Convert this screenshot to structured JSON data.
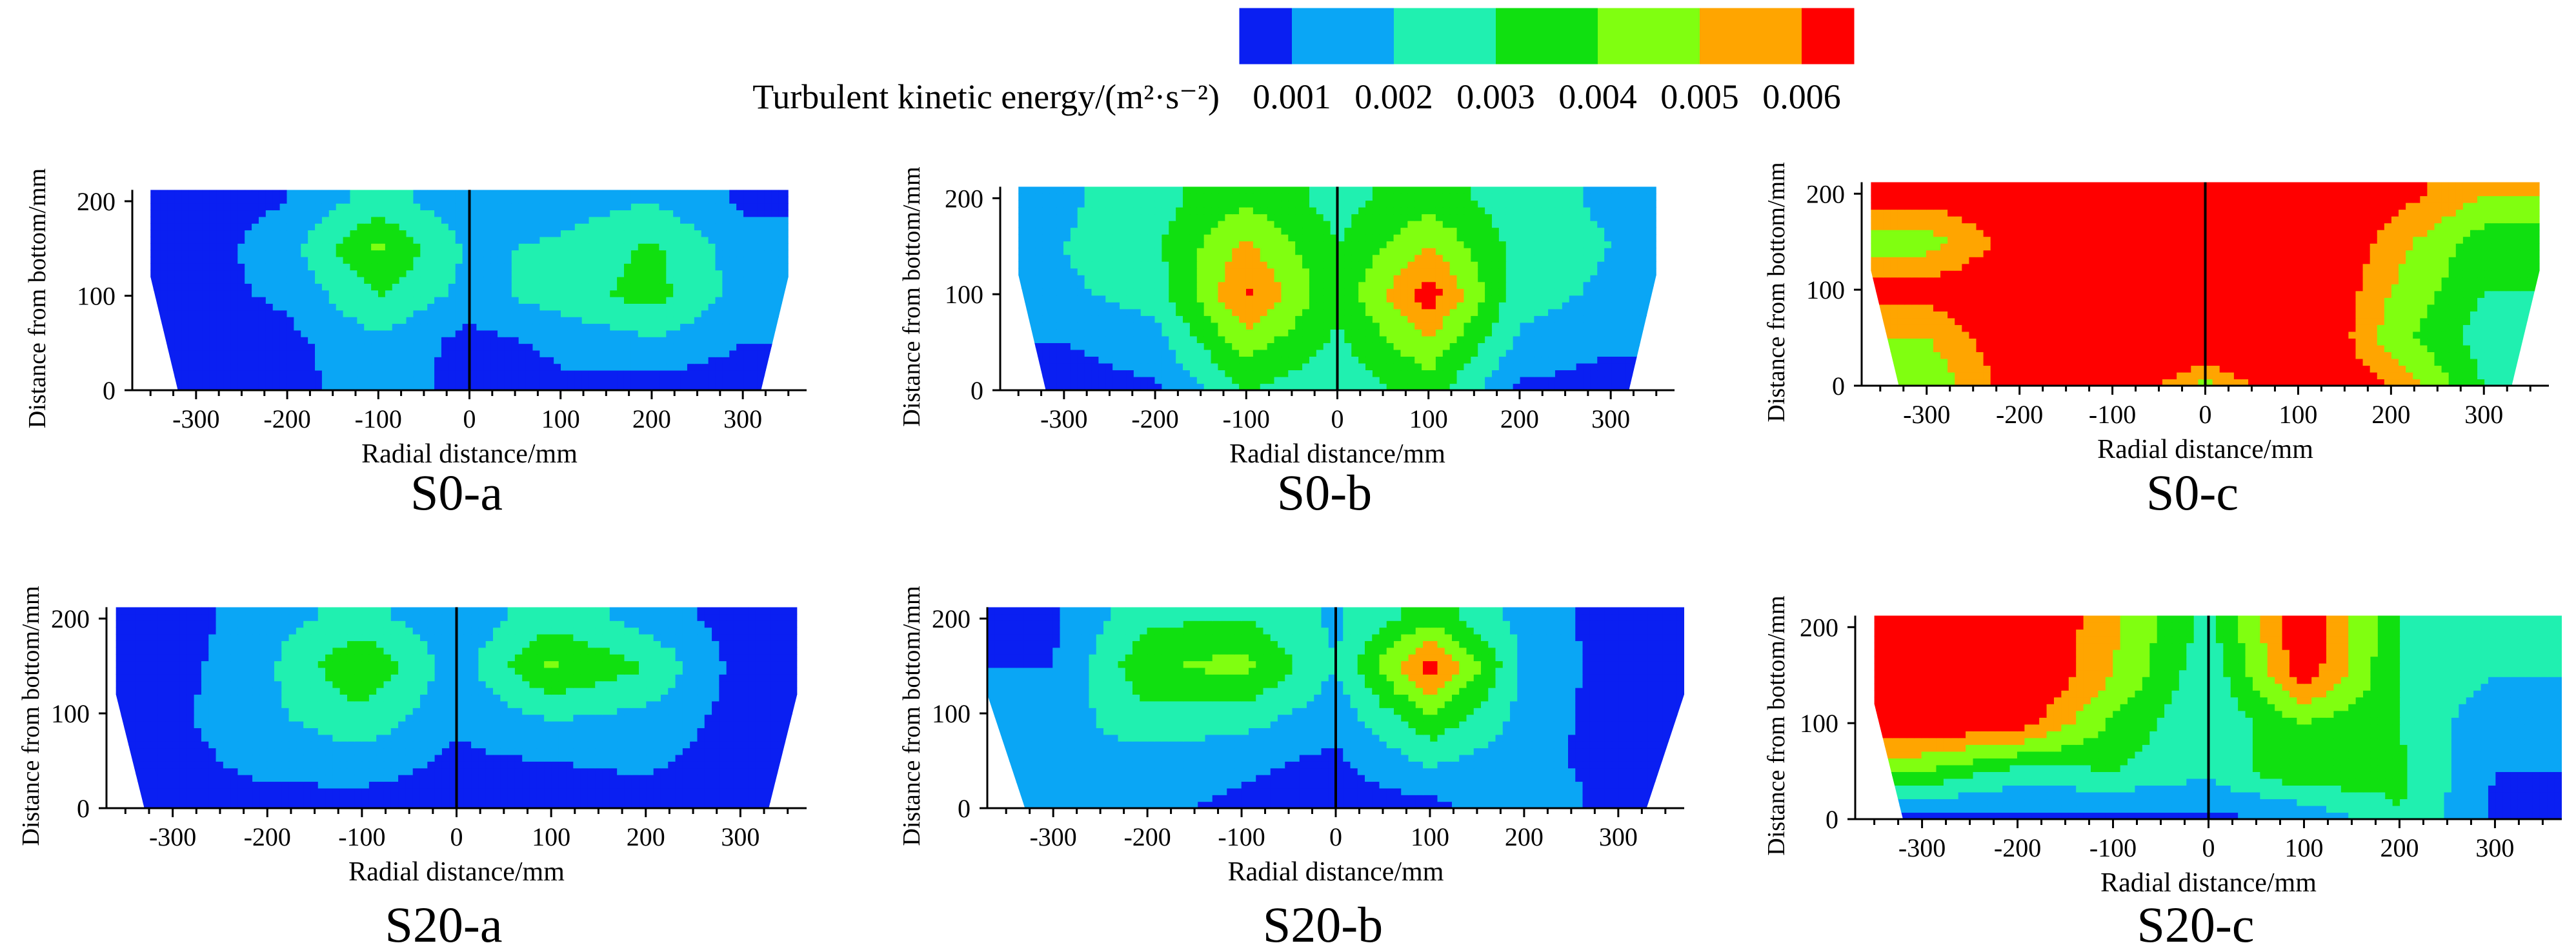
{
  "figure": {
    "colorbar": {
      "label": "Turbulent kinetic energy/(m²·s⁻²)",
      "ticks": [
        "0.001",
        "0.002",
        "0.003",
        "0.004",
        "0.005",
        "0.006"
      ],
      "colors": [
        "#0a1ff2",
        "#0aa6f5",
        "#20f0b0",
        "#10e010",
        "#80ff10",
        "#ffa500",
        "#ff0000"
      ]
    }
  },
  "chart_data": [
    {
      "type": "heatmap",
      "title": "S0-a",
      "xlabel": "Radial distance/mm",
      "ylabel": "Distance from bottom/mm",
      "xlim": [
        -370,
        370
      ],
      "ylim": [
        0,
        215
      ],
      "xticks": [
        -300,
        -200,
        -100,
        0,
        100,
        200,
        300
      ],
      "yticks": [
        0,
        100,
        200
      ],
      "domain": {
        "top": [
          -350,
          350
        ],
        "bottom": [
          -320,
          320
        ],
        "bevel_y": 120
      },
      "colormap_levels": [
        0.001,
        0.002,
        0.003,
        0.004,
        0.005,
        0.006
      ],
      "x": [
        -300,
        -200,
        -100,
        0,
        100,
        200,
        300
      ],
      "y": [
        0,
        50,
        100,
        150,
        200
      ],
      "z": [
        [
          0.0005,
          0.0005,
          0.0018,
          0.0005,
          0.0008,
          0.0005,
          0.0005
        ],
        [
          0.0005,
          0.0007,
          0.0018,
          0.0006,
          0.0012,
          0.0018,
          0.001
        ],
        [
          0.0006,
          0.0012,
          0.003,
          0.0016,
          0.0025,
          0.0034,
          0.0016
        ],
        [
          0.0005,
          0.0016,
          0.0042,
          0.0018,
          0.0022,
          0.0032,
          0.0015
        ],
        [
          0.0005,
          0.001,
          0.0025,
          0.0012,
          0.0015,
          0.002,
          0.0008
        ]
      ]
    },
    {
      "type": "heatmap",
      "title": "S0-b",
      "xlabel": "Radial distance/mm",
      "ylabel": "Distance from bottom/mm",
      "xlim": [
        -370,
        370
      ],
      "ylim": [
        0,
        215
      ],
      "xticks": [
        -300,
        -200,
        -100,
        0,
        100,
        200,
        300
      ],
      "yticks": [
        0,
        100,
        200
      ],
      "domain": {
        "top": [
          -350,
          350
        ],
        "bottom": [
          -320,
          320
        ],
        "bevel_y": 120
      },
      "colormap_levels": [
        0.001,
        0.002,
        0.003,
        0.004,
        0.005,
        0.006
      ],
      "x": [
        -300,
        -200,
        -100,
        0,
        100,
        200,
        300
      ],
      "y": [
        0,
        50,
        100,
        150,
        200
      ],
      "z": [
        [
          0.0005,
          0.0008,
          0.003,
          0.0022,
          0.0035,
          0.0008,
          0.0005
        ],
        [
          0.001,
          0.0016,
          0.0045,
          0.0028,
          0.0048,
          0.0018,
          0.0012
        ],
        [
          0.0018,
          0.0024,
          0.0062,
          0.0032,
          0.0066,
          0.0024,
          0.0018
        ],
        [
          0.002,
          0.0028,
          0.0052,
          0.003,
          0.005,
          0.0026,
          0.002
        ],
        [
          0.0018,
          0.0026,
          0.0038,
          0.0026,
          0.0036,
          0.0024,
          0.0018
        ]
      ]
    },
    {
      "type": "heatmap",
      "title": "S0-c",
      "xlabel": "Radial distance/mm",
      "ylabel": "Distance from bottom/mm",
      "xlim": [
        -370,
        370
      ],
      "ylim": [
        0,
        215
      ],
      "xticks": [
        -300,
        -200,
        -100,
        0,
        100,
        200,
        300
      ],
      "yticks": [
        0,
        100,
        200
      ],
      "domain": {
        "top": [
          -360,
          360
        ],
        "bottom": [
          -330,
          330
        ],
        "bevel_y": 120
      },
      "colormap_levels": [
        0.001,
        0.002,
        0.003,
        0.004,
        0.005,
        0.006
      ],
      "x": [
        -300,
        -200,
        -100,
        0,
        100,
        200,
        300
      ],
      "y": [
        0,
        50,
        100,
        150,
        200
      ],
      "z": [
        [
          0.004,
          0.0068,
          0.0075,
          0.0045,
          0.0075,
          0.006,
          0.003
        ],
        [
          0.005,
          0.007,
          0.008,
          0.008,
          0.008,
          0.0045,
          0.0025
        ],
        [
          0.0065,
          0.007,
          0.008,
          0.008,
          0.008,
          0.005,
          0.003
        ],
        [
          0.0045,
          0.0066,
          0.008,
          0.008,
          0.008,
          0.0055,
          0.0035
        ],
        [
          0.0066,
          0.007,
          0.008,
          0.008,
          0.008,
          0.0066,
          0.005
        ]
      ]
    },
    {
      "type": "heatmap",
      "title": "S20-a",
      "xlabel": "Radial distance/mm",
      "ylabel": "Distance from bottom/mm",
      "xlim": [
        -370,
        370
      ],
      "ylim": [
        0,
        215
      ],
      "xticks": [
        -300,
        -200,
        -100,
        0,
        100,
        200,
        300
      ],
      "yticks": [
        0,
        100,
        200
      ],
      "domain": {
        "top": [
          -360,
          360
        ],
        "bottom": [
          -330,
          330
        ],
        "bevel_y": 120
      },
      "colormap_levels": [
        0.001,
        0.002,
        0.003,
        0.004,
        0.005,
        0.006
      ],
      "x": [
        -300,
        -200,
        -100,
        0,
        100,
        200,
        300
      ],
      "y": [
        0,
        50,
        100,
        150,
        200
      ],
      "z": [
        [
          0.0005,
          0.0005,
          0.0005,
          0.0005,
          0.0005,
          0.0005,
          0.0005
        ],
        [
          0.0006,
          0.0014,
          0.0016,
          0.0008,
          0.001,
          0.0012,
          0.0005
        ],
        [
          0.0008,
          0.0018,
          0.0028,
          0.0012,
          0.0022,
          0.0018,
          0.0006
        ],
        [
          0.0006,
          0.0018,
          0.004,
          0.0015,
          0.0042,
          0.003,
          0.0006
        ],
        [
          0.0005,
          0.0016,
          0.0024,
          0.0012,
          0.0026,
          0.0016,
          0.0005
        ]
      ]
    },
    {
      "type": "heatmap",
      "title": "S20-b",
      "xlabel": "Radial distance/mm",
      "ylabel": "Distance from bottom/mm",
      "xlim": [
        -370,
        370
      ],
      "ylim": [
        0,
        215
      ],
      "xticks": [
        -300,
        -200,
        -100,
        0,
        100,
        200,
        300
      ],
      "yticks": [
        0,
        100,
        200
      ],
      "domain": {
        "top": [
          -370,
          370
        ],
        "bottom": [
          -330,
          330
        ],
        "bevel_y": 120
      },
      "colormap_levels": [
        0.001,
        0.002,
        0.003,
        0.004,
        0.005,
        0.006
      ],
      "x": [
        -300,
        -200,
        -100,
        0,
        100,
        200,
        300
      ],
      "y": [
        0,
        50,
        100,
        150,
        200
      ],
      "z": [
        [
          0.0012,
          0.0012,
          0.0008,
          0.0005,
          0.0006,
          0.002,
          0.0005
        ],
        [
          0.0018,
          0.0016,
          0.0012,
          0.0008,
          0.0022,
          0.0014,
          0.0005
        ],
        [
          0.0014,
          0.0028,
          0.0026,
          0.0014,
          0.004,
          0.0016,
          0.0005
        ],
        [
          0.001,
          0.0038,
          0.0044,
          0.002,
          0.0066,
          0.0018,
          0.0005
        ],
        [
          0.0008,
          0.0028,
          0.003,
          0.0018,
          0.0036,
          0.0016,
          0.0005
        ]
      ]
    },
    {
      "type": "heatmap",
      "title": "S20-c",
      "xlabel": "Radial distance/mm",
      "ylabel": "Distance from bottom/mm",
      "xlim": [
        -370,
        370
      ],
      "ylim": [
        0,
        215
      ],
      "xticks": [
        -300,
        -200,
        -100,
        0,
        100,
        200,
        300
      ],
      "yticks": [
        0,
        100,
        200
      ],
      "domain": {
        "top": [
          -350,
          370
        ],
        "bottom": [
          -320,
          370
        ],
        "bevel_y": 120
      },
      "colormap_levels": [
        0.001,
        0.002,
        0.003,
        0.004,
        0.005,
        0.006
      ],
      "x": [
        -300,
        -200,
        -100,
        0,
        100,
        200,
        300
      ],
      "y": [
        0,
        50,
        100,
        150,
        200
      ],
      "z": [
        [
          0.0005,
          0.0006,
          0.0005,
          0.0008,
          0.001,
          0.003,
          0.0008
        ],
        [
          0.004,
          0.0026,
          0.003,
          0.0022,
          0.004,
          0.0032,
          0.001
        ],
        [
          0.007,
          0.0066,
          0.0038,
          0.002,
          0.004,
          0.003,
          0.0012
        ],
        [
          0.0075,
          0.0075,
          0.005,
          0.0022,
          0.0066,
          0.003,
          0.002
        ],
        [
          0.0075,
          0.0075,
          0.0052,
          0.0026,
          0.007,
          0.003,
          0.0025
        ]
      ]
    }
  ]
}
